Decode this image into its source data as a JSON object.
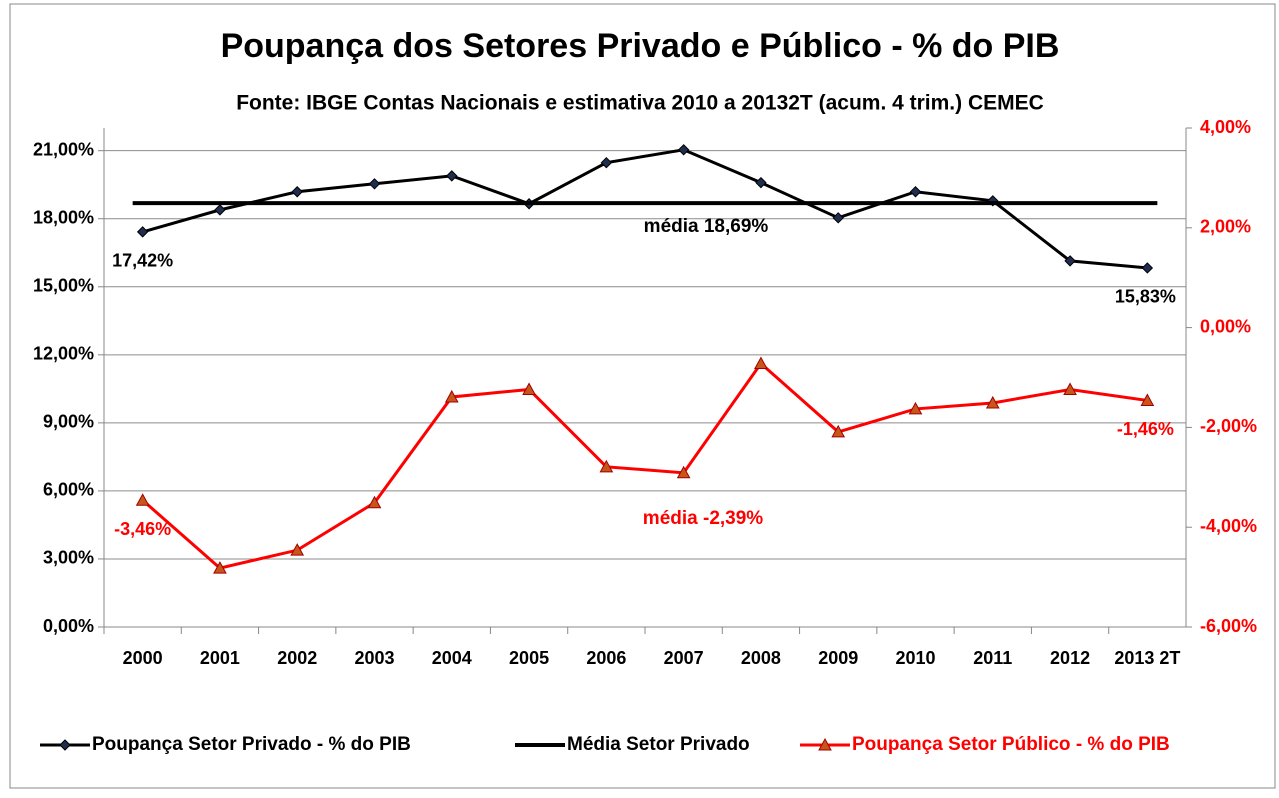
{
  "chart_data": {
    "type": "line",
    "title": "Poupança dos Setores Privado e Público - % do PIB",
    "subtitle": "Fonte: IBGE  Contas Nacionais e estimativa 2010 a 20132T (acum. 4 trim.) CEMEC",
    "categories": [
      "2000",
      "2001",
      "2002",
      "2003",
      "2004",
      "2005",
      "2006",
      "2007",
      "2008",
      "2009",
      "2010",
      "2011",
      "2012",
      "2013 2T"
    ],
    "series": [
      {
        "name": "Poupança Setor Privado - % do PIB",
        "color": "#000000",
        "marker_color": "#1f2d4f",
        "marker": "diamond",
        "values": [
          17.42,
          18.39,
          19.19,
          19.54,
          19.89,
          18.66,
          20.47,
          21.04,
          19.59,
          18.04,
          19.19,
          18.79,
          16.14,
          15.83
        ],
        "value_labels": [
          "17,42%",
          null,
          null,
          null,
          null,
          null,
          null,
          null,
          null,
          null,
          null,
          null,
          null,
          "15,83%"
        ]
      },
      {
        "name": "Média Setor Privado",
        "color": "#000000",
        "values": [
          18.69,
          18.69,
          18.69,
          18.69,
          18.69,
          18.69,
          18.69,
          18.69,
          18.69,
          18.69,
          18.69,
          18.69,
          18.69,
          18.69
        ]
      },
      {
        "name": "Poupança Setor Público - % do PIB",
        "color": "#ff0000",
        "marker_color": "#c8561a",
        "marker": "triangle",
        "axis": "y2",
        "values": [
          -3.46,
          -4.82,
          -4.46,
          -3.51,
          -1.39,
          -1.24,
          -2.79,
          -2.91,
          -0.72,
          -2.09,
          -1.63,
          -1.51,
          -1.24,
          -1.46
        ],
        "value_labels": [
          "-3,46%",
          null,
          null,
          null,
          null,
          null,
          null,
          null,
          null,
          null,
          null,
          null,
          null,
          "-1,46%"
        ]
      }
    ],
    "annotations": [
      "média 18,69%",
      "média -2,39%"
    ],
    "ylim": [
      0,
      22
    ],
    "yticks": [
      {
        "value": 0,
        "label": "0,00%"
      },
      {
        "value": 3,
        "label": "3,00%"
      },
      {
        "value": 6,
        "label": "6,00%"
      },
      {
        "value": 9,
        "label": "9,00%"
      },
      {
        "value": 12,
        "label": "12,00%"
      },
      {
        "value": 15,
        "label": "15,00%"
      },
      {
        "value": 18,
        "label": "18,00%"
      },
      {
        "value": 21,
        "label": "21,00%"
      }
    ],
    "y2lim": [
      -6,
      4
    ],
    "y2ticks": [
      {
        "value": -6,
        "label": "-6,00%"
      },
      {
        "value": -4,
        "label": "-4,00%"
      },
      {
        "value": -2,
        "label": "-2,00%"
      },
      {
        "value": 0,
        "label": "0,00%"
      },
      {
        "value": 2,
        "label": "2,00%"
      },
      {
        "value": 4,
        "label": "4,00%"
      }
    ],
    "y2_color": "#ff0000",
    "grid": true,
    "legend": "bottom"
  }
}
